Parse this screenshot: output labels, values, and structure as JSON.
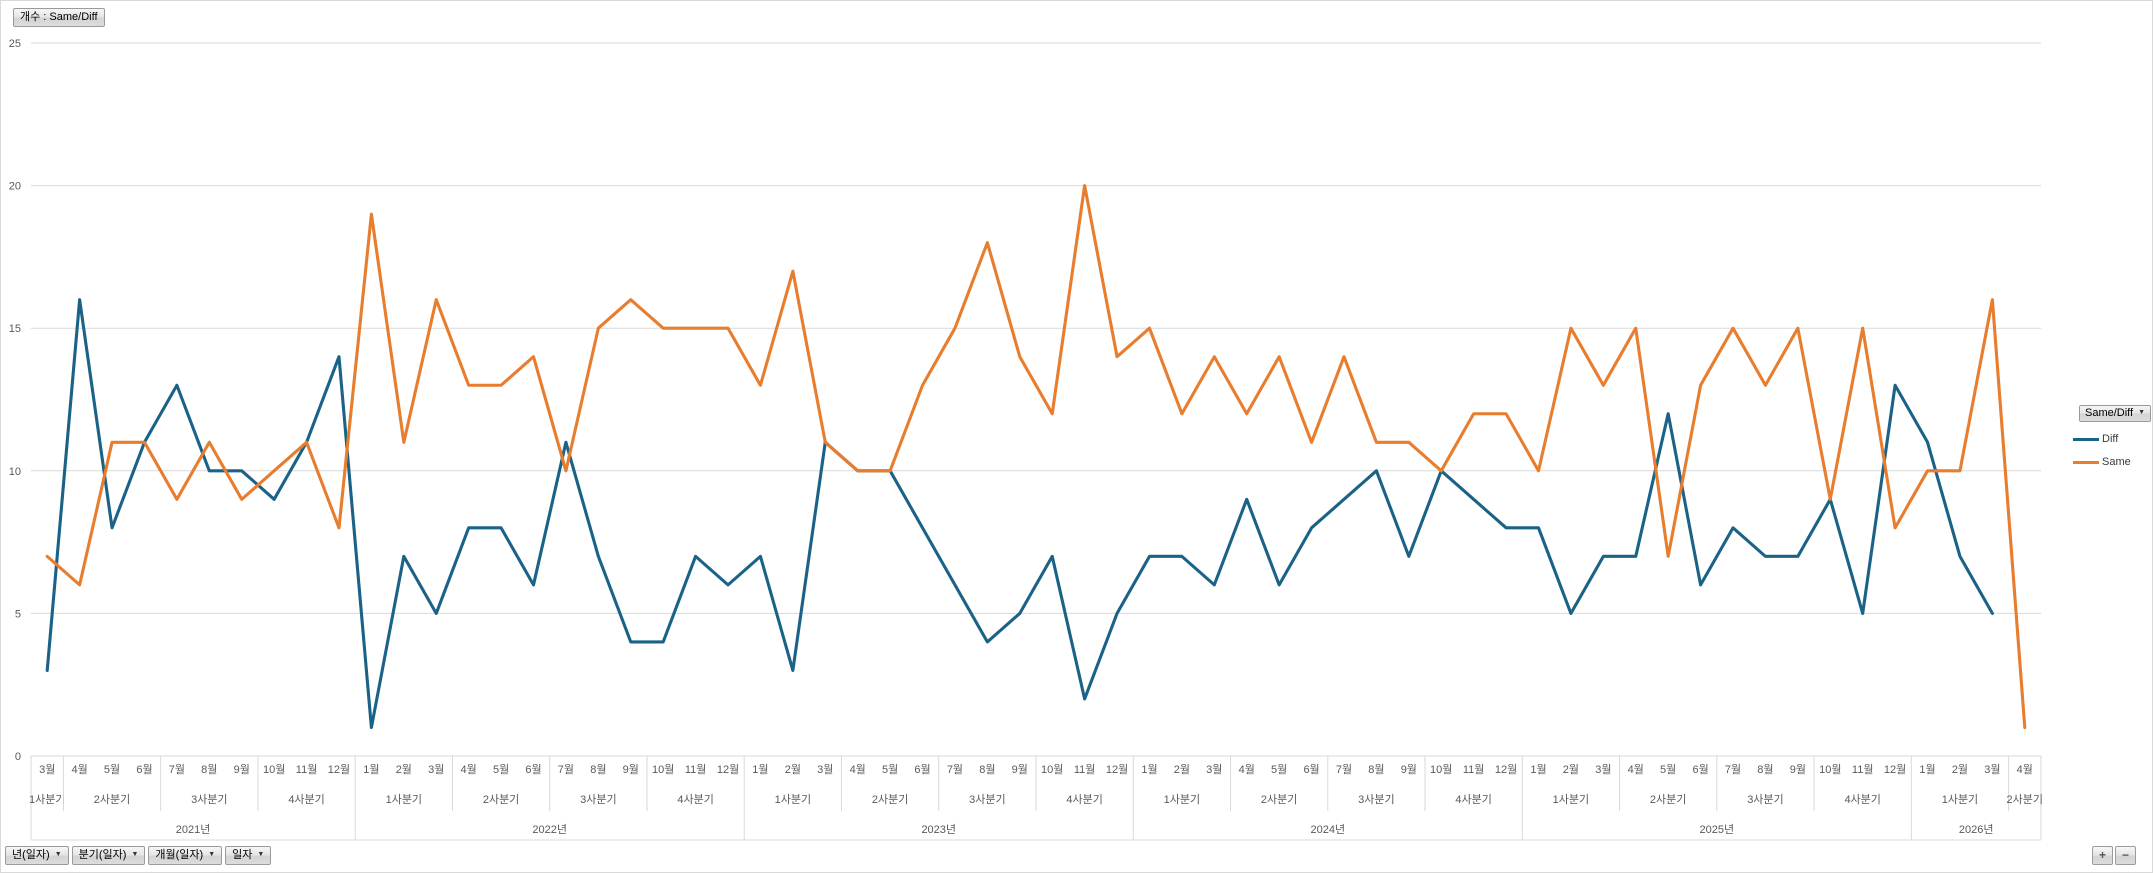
{
  "value_field_button": "개수 : Same/Diff",
  "icons": {
    "dropdown": "▼",
    "plus": "+",
    "minus": "−"
  },
  "legend": {
    "button_label": "Same/Diff",
    "items": [
      {
        "label": "Diff",
        "color": "#1A6387"
      },
      {
        "label": "Same",
        "color": "#E87D2E"
      }
    ]
  },
  "axis_field_buttons": [
    {
      "label": "년(일자)"
    },
    {
      "label": "분기(일자)"
    },
    {
      "label": "개월(일자)"
    },
    {
      "label": "일자"
    }
  ],
  "chart_data": {
    "type": "line",
    "title": "개수 : Same/Diff",
    "xlabel": "",
    "ylabel": "",
    "ylim": [
      0,
      25
    ],
    "yticks": [
      0,
      5,
      10,
      15,
      20,
      25
    ],
    "grid": true,
    "legend_position": "right",
    "grid_color": "#D9D9D9",
    "axis_text_color": "#595959",
    "years": [
      {
        "label": "2021년",
        "quarters": [
          {
            "label": "1사분기",
            "months": [
              "3월"
            ]
          },
          {
            "label": "2사분기",
            "months": [
              "4월",
              "5월",
              "6월"
            ]
          },
          {
            "label": "3사분기",
            "months": [
              "7월",
              "8월",
              "9월"
            ]
          },
          {
            "label": "4사분기",
            "months": [
              "10월",
              "11월",
              "12월"
            ]
          }
        ]
      },
      {
        "label": "2022년",
        "quarters": [
          {
            "label": "1사분기",
            "months": [
              "1월",
              "2월",
              "3월"
            ]
          },
          {
            "label": "2사분기",
            "months": [
              "4월",
              "5월",
              "6월"
            ]
          },
          {
            "label": "3사분기",
            "months": [
              "7월",
              "8월",
              "9월"
            ]
          },
          {
            "label": "4사분기",
            "months": [
              "10월",
              "11월",
              "12월"
            ]
          }
        ]
      },
      {
        "label": "2023년",
        "quarters": [
          {
            "label": "1사분기",
            "months": [
              "1월",
              "2월",
              "3월"
            ]
          },
          {
            "label": "2사분기",
            "months": [
              "4월",
              "5월",
              "6월"
            ]
          },
          {
            "label": "3사분기",
            "months": [
              "7월",
              "8월",
              "9월"
            ]
          },
          {
            "label": "4사분기",
            "months": [
              "10월",
              "11월",
              "12월"
            ]
          }
        ]
      },
      {
        "label": "2024년",
        "quarters": [
          {
            "label": "1사분기",
            "months": [
              "1월",
              "2월",
              "3월"
            ]
          },
          {
            "label": "2사분기",
            "months": [
              "4월",
              "5월",
              "6월"
            ]
          },
          {
            "label": "3사분기",
            "months": [
              "7월",
              "8월",
              "9월"
            ]
          },
          {
            "label": "4사분기",
            "months": [
              "10월",
              "11월",
              "12월"
            ]
          }
        ]
      },
      {
        "label": "2025년",
        "quarters": [
          {
            "label": "1사분기",
            "months": [
              "1월",
              "2월",
              "3월"
            ]
          },
          {
            "label": "2사분기",
            "months": [
              "4월",
              "5월",
              "6월"
            ]
          },
          {
            "label": "3사분기",
            "months": [
              "7월",
              "8월",
              "9월"
            ]
          },
          {
            "label": "4사분기",
            "months": [
              "10월",
              "11월",
              "12월"
            ]
          }
        ]
      },
      {
        "label": "2026년",
        "quarters": [
          {
            "label": "1사분기",
            "months": [
              "1월",
              "2월",
              "3월"
            ]
          },
          {
            "label": "2사분기",
            "months": [
              "4월"
            ]
          }
        ]
      }
    ],
    "series": [
      {
        "name": "Diff",
        "color": "#1A6387",
        "values": [
          3,
          16,
          8,
          11,
          13,
          10,
          10,
          9,
          11,
          14,
          1,
          7,
          5,
          8,
          8,
          6,
          11,
          7,
          4,
          4,
          7,
          6,
          7,
          3,
          11,
          10,
          10,
          8,
          6,
          4,
          5,
          7,
          2,
          5,
          7,
          7,
          6,
          9,
          6,
          8,
          9,
          10,
          7,
          10,
          9,
          8,
          8,
          5,
          7,
          7,
          12,
          6,
          8,
          7,
          7,
          9,
          5,
          13,
          11,
          7,
          5,
          null
        ]
      },
      {
        "name": "Same",
        "color": "#E87D2E",
        "values": [
          7,
          6,
          11,
          11,
          9,
          11,
          9,
          10,
          11,
          8,
          19,
          11,
          16,
          13,
          13,
          14,
          10,
          15,
          16,
          15,
          15,
          15,
          13,
          17,
          11,
          10,
          10,
          13,
          15,
          18,
          14,
          12,
          20,
          14,
          15,
          12,
          14,
          12,
          14,
          11,
          14,
          11,
          11,
          10,
          12,
          12,
          10,
          15,
          13,
          15,
          7,
          13,
          15,
          13,
          15,
          9,
          15,
          8,
          10,
          10,
          16,
          1
        ]
      }
    ]
  }
}
